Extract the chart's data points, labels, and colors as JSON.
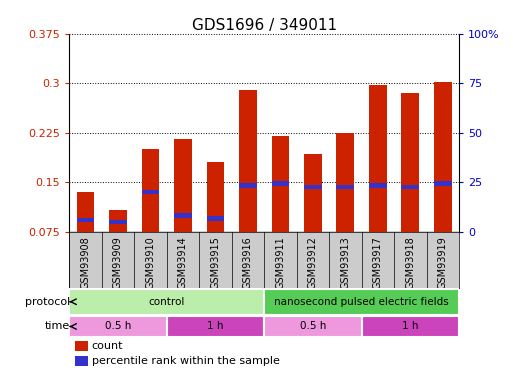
{
  "title": "GDS1696 / 349011",
  "samples": [
    "GSM93908",
    "GSM93909",
    "GSM93910",
    "GSM93914",
    "GSM93915",
    "GSM93916",
    "GSM93911",
    "GSM93912",
    "GSM93913",
    "GSM93917",
    "GSM93918",
    "GSM93919"
  ],
  "count_values": [
    0.135,
    0.108,
    0.2,
    0.215,
    0.18,
    0.29,
    0.22,
    0.193,
    0.225,
    0.297,
    0.285,
    0.302
  ],
  "percentile_values": [
    0.093,
    0.09,
    0.135,
    0.1,
    0.095,
    0.145,
    0.148,
    0.143,
    0.143,
    0.145,
    0.143,
    0.148
  ],
  "ylim_left": [
    0.075,
    0.375
  ],
  "ylim_right": [
    0,
    100
  ],
  "yticks_left": [
    0.075,
    0.15,
    0.225,
    0.3,
    0.375
  ],
  "ytick_labels_left": [
    "0.075",
    "0.15",
    "0.225",
    "0.3",
    "0.375"
  ],
  "yticks_right": [
    0,
    25,
    50,
    75,
    100
  ],
  "ytick_labels_right": [
    "0",
    "25",
    "50",
    "75",
    "100%"
  ],
  "bar_color": "#cc2200",
  "percentile_color": "#3333cc",
  "bar_width": 0.55,
  "protocol_groups": [
    {
      "label": "control",
      "start": 0,
      "end": 6,
      "color": "#bbeeaa"
    },
    {
      "label": "nanosecond pulsed electric fields",
      "start": 6,
      "end": 12,
      "color": "#55cc55"
    }
  ],
  "time_groups": [
    {
      "label": "0.5 h",
      "start": 0,
      "end": 3,
      "color": "#ee99dd"
    },
    {
      "label": "1 h",
      "start": 3,
      "end": 6,
      "color": "#cc44bb"
    },
    {
      "label": "0.5 h",
      "start": 6,
      "end": 9,
      "color": "#ee99dd"
    },
    {
      "label": "1 h",
      "start": 9,
      "end": 12,
      "color": "#cc44bb"
    }
  ],
  "legend_count_label": "count",
  "legend_pct_label": "percentile rank within the sample",
  "bg_color": "#ffffff",
  "plot_bg_color": "#ffffff",
  "sample_bg_color": "#cccccc",
  "grid_color": "#000000",
  "tick_label_color_left": "#cc2200",
  "tick_label_color_right": "#0000cc",
  "title_fontsize": 11,
  "tick_fontsize": 8,
  "sample_label_fontsize": 7
}
